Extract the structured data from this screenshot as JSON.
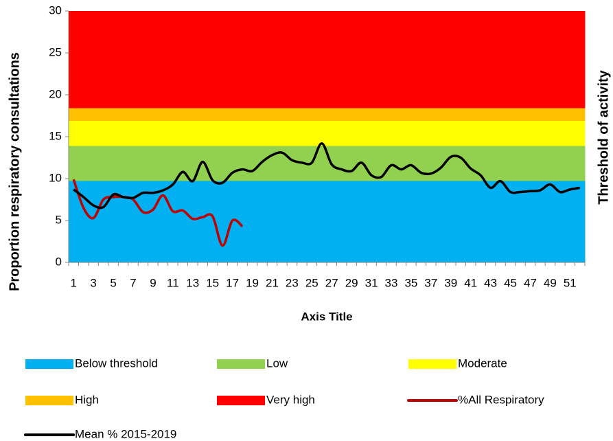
{
  "chart_data": {
    "type": "combo",
    "y_title": "Proportion respiratory consultations",
    "y2_title": "Threshold of activity",
    "x_title": "Axis Title",
    "categories": [
      "1",
      null,
      "3",
      null,
      "5",
      null,
      "7",
      null,
      "9",
      null,
      "11",
      null,
      "13",
      null,
      "15",
      null,
      "17",
      null,
      "19",
      null,
      "21",
      null,
      "23",
      null,
      "25",
      null,
      "27",
      null,
      "29",
      null,
      "31",
      null,
      "33",
      null,
      "35",
      null,
      "37",
      null,
      "39",
      null,
      "41",
      null,
      "43",
      null,
      "45",
      null,
      "47",
      null,
      "49",
      null,
      "51",
      null
    ],
    "ylim": [
      0,
      30
    ],
    "yticks": [
      0,
      5,
      10,
      15,
      20,
      25,
      30
    ],
    "series": [
      {
        "name": "Below threshold",
        "type": "area",
        "color": "#00b0f0",
        "values": [
          9.7,
          9.7,
          9.7,
          9.7,
          9.7,
          9.7,
          9.7,
          9.7,
          9.7,
          9.7,
          9.7,
          9.7,
          9.7,
          9.7,
          9.7,
          9.7,
          9.7,
          9.7,
          9.7,
          9.7,
          9.7,
          9.7,
          9.7,
          9.7,
          9.7,
          9.7,
          9.7,
          9.7,
          9.7,
          9.7,
          9.7,
          9.7,
          9.7,
          9.7,
          9.7,
          9.7,
          9.7,
          9.7,
          9.7,
          9.7,
          9.7,
          9.7,
          9.7,
          9.7,
          9.7,
          9.7,
          9.7,
          9.7,
          9.7,
          9.7,
          9.7,
          9.7
        ]
      },
      {
        "name": "Low",
        "type": "area",
        "color": "#92d050",
        "values": [
          4.2,
          4.2,
          4.2,
          4.2,
          4.2,
          4.2,
          4.2,
          4.2,
          4.2,
          4.2,
          4.2,
          4.2,
          4.2,
          4.2,
          4.2,
          4.2,
          4.2,
          4.2,
          4.2,
          4.2,
          4.2,
          4.2,
          4.2,
          4.2,
          4.2,
          4.2,
          4.2,
          4.2,
          4.2,
          4.2,
          4.2,
          4.2,
          4.2,
          4.2,
          4.2,
          4.2,
          4.2,
          4.2,
          4.2,
          4.2,
          4.2,
          4.2,
          4.2,
          4.2,
          4.2,
          4.2,
          4.2,
          4.2,
          4.2,
          4.2,
          4.2,
          4.2
        ]
      },
      {
        "name": "Moderate",
        "type": "area",
        "color": "#ffff00",
        "values": [
          3.0,
          3.0,
          3.0,
          3.0,
          3.0,
          3.0,
          3.0,
          3.0,
          3.0,
          3.0,
          3.0,
          3.0,
          3.0,
          3.0,
          3.0,
          3.0,
          3.0,
          3.0,
          3.0,
          3.0,
          3.0,
          3.0,
          3.0,
          3.0,
          3.0,
          3.0,
          3.0,
          3.0,
          3.0,
          3.0,
          3.0,
          3.0,
          3.0,
          3.0,
          3.0,
          3.0,
          3.0,
          3.0,
          3.0,
          3.0,
          3.0,
          3.0,
          3.0,
          3.0,
          3.0,
          3.0,
          3.0,
          3.0,
          3.0,
          3.0,
          3.0,
          3.0
        ]
      },
      {
        "name": "High",
        "type": "area",
        "color": "#ffc000",
        "values": [
          1.5,
          1.5,
          1.5,
          1.5,
          1.5,
          1.5,
          1.5,
          1.5,
          1.5,
          1.5,
          1.5,
          1.5,
          1.5,
          1.5,
          1.5,
          1.5,
          1.5,
          1.5,
          1.5,
          1.5,
          1.5,
          1.5,
          1.5,
          1.5,
          1.5,
          1.5,
          1.5,
          1.5,
          1.5,
          1.5,
          1.5,
          1.5,
          1.5,
          1.5,
          1.5,
          1.5,
          1.5,
          1.5,
          1.5,
          1.5,
          1.5,
          1.5,
          1.5,
          1.5,
          1.5,
          1.5,
          1.5,
          1.5,
          1.5,
          1.5,
          1.5,
          1.5
        ]
      },
      {
        "name": "Very high",
        "type": "area",
        "color": "#ff0000",
        "values": [
          11.6,
          11.6,
          11.6,
          11.6,
          11.6,
          11.6,
          11.6,
          11.6,
          11.6,
          11.6,
          11.6,
          11.6,
          11.6,
          11.6,
          11.6,
          11.6,
          11.6,
          11.6,
          11.6,
          11.6,
          11.6,
          11.6,
          11.6,
          11.6,
          11.6,
          11.6,
          11.6,
          11.6,
          11.6,
          11.6,
          11.6,
          11.6,
          11.6,
          11.6,
          11.6,
          11.6,
          11.6,
          11.6,
          11.6,
          11.6,
          11.6,
          11.6,
          11.6,
          11.6,
          11.6,
          11.6,
          11.6,
          11.6,
          11.6,
          11.6,
          11.6,
          11.6
        ]
      },
      {
        "name": "%All Respiratory",
        "type": "line",
        "color": "#c00000",
        "values": [
          9.9,
          6.5,
          5.3,
          7.5,
          7.8,
          7.8,
          7.5,
          6.0,
          6.3,
          8.0,
          6.1,
          6.2,
          5.2,
          5.4,
          5.5,
          2.0,
          5.0,
          4.3,
          null,
          null,
          null,
          null,
          null,
          null,
          null,
          null,
          null,
          null,
          null,
          null,
          null,
          null,
          null,
          null,
          null,
          null,
          null,
          null,
          null,
          null,
          null,
          null,
          null,
          null,
          null,
          null,
          null,
          null,
          null,
          null,
          null,
          null
        ]
      },
      {
        "name": "Mean % 2015-2019",
        "type": "line",
        "color": "#000000",
        "values": [
          8.7,
          7.8,
          6.8,
          6.6,
          8.1,
          7.8,
          7.7,
          8.3,
          8.3,
          8.6,
          9.3,
          10.8,
          9.7,
          12.0,
          9.8,
          9.5,
          10.7,
          11.1,
          10.9,
          12.0,
          12.8,
          13.1,
          12.2,
          11.9,
          11.9,
          14.2,
          11.7,
          11.1,
          10.9,
          11.9,
          10.4,
          10.2,
          11.6,
          11.1,
          11.6,
          10.7,
          10.6,
          11.3,
          12.6,
          12.5,
          11.2,
          10.4,
          8.9,
          9.7,
          8.4,
          8.4,
          8.5,
          8.6,
          9.3,
          8.4,
          8.7,
          8.9
        ]
      }
    ]
  }
}
